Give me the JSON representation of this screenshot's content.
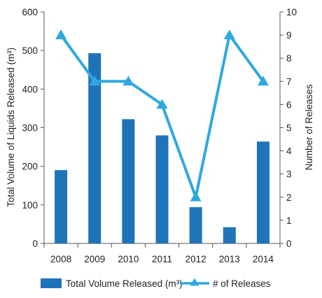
{
  "chart_data": {
    "type": "bar+line",
    "categories": [
      "2008",
      "2009",
      "2010",
      "2011",
      "2012",
      "2013",
      "2014"
    ],
    "series": [
      {
        "name": "Total Volume Released (m³)",
        "type": "bar",
        "axis": "left",
        "values": [
          190,
          493,
          322,
          280,
          94,
          42,
          264
        ]
      },
      {
        "name": "# of Releases",
        "type": "line",
        "axis": "right",
        "values": [
          9,
          7,
          7,
          6,
          2,
          9,
          7
        ]
      }
    ],
    "ylabel": "Total Volume of Liquids Released (m³)",
    "ylabel_right": "Number of Releases",
    "ylim": [
      0,
      600
    ],
    "ylim_right": [
      0,
      10
    ],
    "yticks": [
      "0",
      "100",
      "200",
      "300",
      "400",
      "500",
      "600"
    ],
    "yticks_right": [
      "0",
      "1",
      "2",
      "3",
      "4",
      "5",
      "6",
      "7",
      "8",
      "9",
      "10"
    ],
    "grid": false,
    "legend_position": "bottom",
    "colors": {
      "bar": "#1f74b9",
      "line": "#2ea8df",
      "axis": "#555555"
    }
  }
}
